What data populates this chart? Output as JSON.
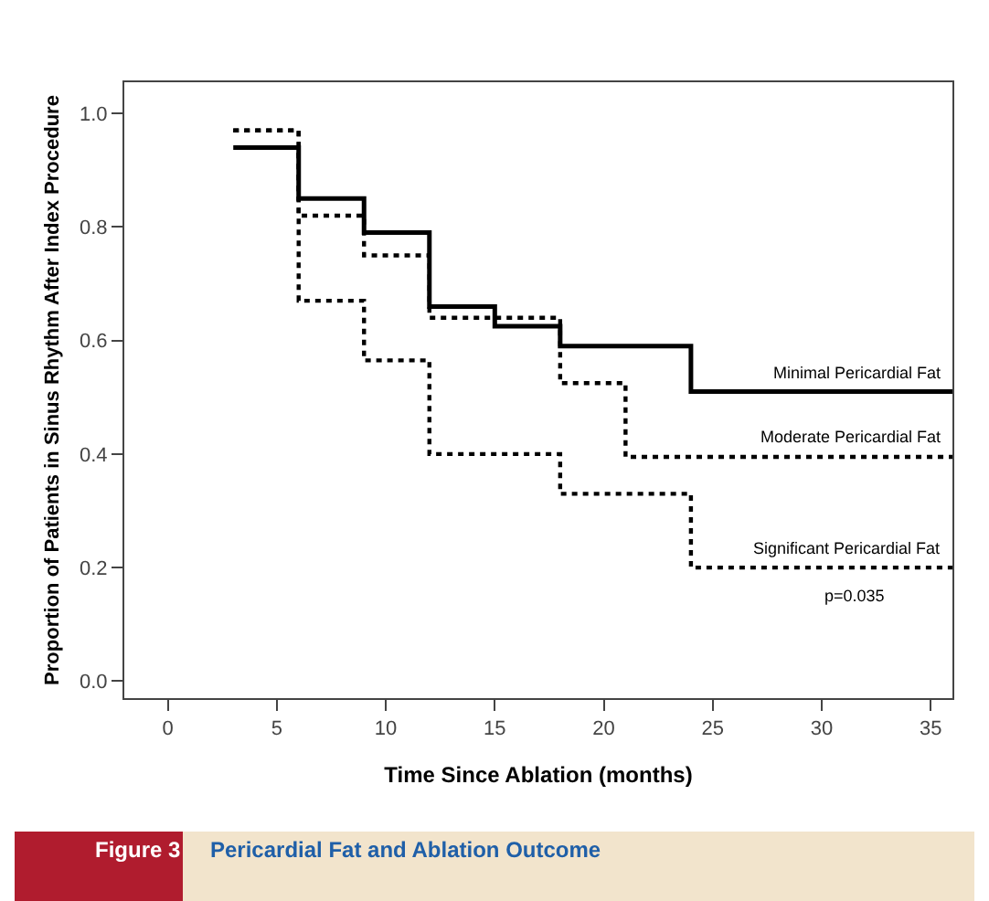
{
  "chart_data": {
    "type": "step",
    "title": "Figure 3",
    "subtitle": "Pericardial Fat and Ablation Outcome",
    "xlabel": "Time Since Ablation (months)",
    "ylabel": "Proportion of Patients in Sinus Rhythm After Index Procedure",
    "series": [
      {
        "name": "Minimal Pericardial Fat",
        "color": "#000000",
        "line_style": "solid",
        "x": [
          3,
          6,
          9,
          12,
          15,
          18,
          24,
          36
        ],
        "values": [
          0.94,
          0.85,
          0.79,
          0.66,
          0.625,
          0.59,
          0.51,
          0.51
        ]
      },
      {
        "name": "Moderate Pericardial Fat",
        "color": "#000000",
        "line_style": "dotted",
        "x": [
          3,
          6,
          9,
          12,
          18,
          21,
          36
        ],
        "values": [
          0.97,
          0.82,
          0.75,
          0.64,
          0.525,
          0.395,
          0.395
        ]
      },
      {
        "name": "Significant Pericardial Fat",
        "color": "#000000",
        "line_style": "dotted",
        "x": [
          3,
          6,
          9,
          12,
          18,
          24,
          36
        ],
        "values": [
          0.97,
          0.67,
          0.565,
          0.4,
          0.33,
          0.2,
          0.2
        ]
      }
    ],
    "annotations": [
      "p=0.035"
    ],
    "xlim": [
      -2,
      36
    ],
    "xticks": [
      0,
      5,
      10,
      15,
      20,
      25,
      30,
      35
    ],
    "ylim": [
      -0.03,
      1.055
    ],
    "yticks": [
      {
        "value": 0,
        "label": "0.0"
      },
      0.2,
      0.4,
      0.6,
      0.8,
      {
        "value": 1,
        "label": "1.0"
      }
    ],
    "legend": false,
    "marker": "none"
  }
}
